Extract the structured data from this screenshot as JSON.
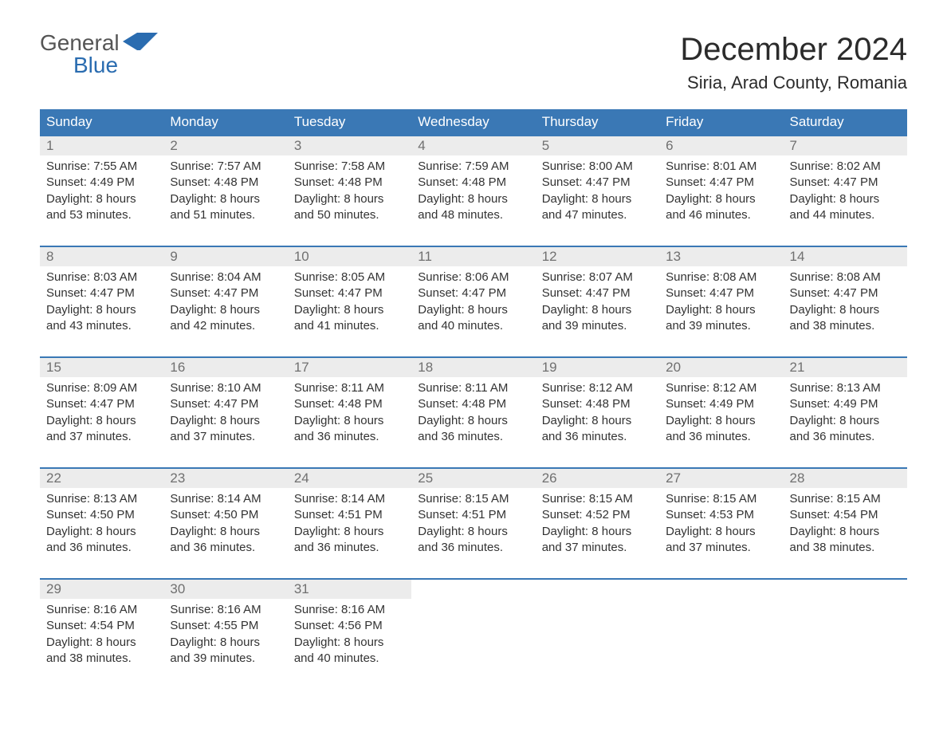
{
  "logo": {
    "word1": "General",
    "word2": "Blue"
  },
  "title": "December 2024",
  "location": "Siria, Arad County, Romania",
  "colors": {
    "header_bg": "#3a78b5",
    "header_fg": "#ffffff",
    "daynum_bg": "#ececec",
    "daynum_fg": "#707070",
    "text": "#333333",
    "rule": "#3a78b5",
    "logo_gray": "#555555",
    "logo_blue": "#2a6cb0",
    "page_bg": "#ffffff"
  },
  "typography": {
    "title_fontsize": 40,
    "location_fontsize": 22,
    "dow_fontsize": 17,
    "daynum_fontsize": 17,
    "body_fontsize": 15,
    "logo_fontsize": 28
  },
  "days_of_week": [
    "Sunday",
    "Monday",
    "Tuesday",
    "Wednesday",
    "Thursday",
    "Friday",
    "Saturday"
  ],
  "labels": {
    "sunrise": "Sunrise:",
    "sunset": "Sunset:",
    "daylight": "Daylight:"
  },
  "weeks": [
    [
      {
        "n": 1,
        "sunrise": "7:55 AM",
        "sunset": "4:49 PM",
        "daylight": "8 hours and 53 minutes."
      },
      {
        "n": 2,
        "sunrise": "7:57 AM",
        "sunset": "4:48 PM",
        "daylight": "8 hours and 51 minutes."
      },
      {
        "n": 3,
        "sunrise": "7:58 AM",
        "sunset": "4:48 PM",
        "daylight": "8 hours and 50 minutes."
      },
      {
        "n": 4,
        "sunrise": "7:59 AM",
        "sunset": "4:48 PM",
        "daylight": "8 hours and 48 minutes."
      },
      {
        "n": 5,
        "sunrise": "8:00 AM",
        "sunset": "4:47 PM",
        "daylight": "8 hours and 47 minutes."
      },
      {
        "n": 6,
        "sunrise": "8:01 AM",
        "sunset": "4:47 PM",
        "daylight": "8 hours and 46 minutes."
      },
      {
        "n": 7,
        "sunrise": "8:02 AM",
        "sunset": "4:47 PM",
        "daylight": "8 hours and 44 minutes."
      }
    ],
    [
      {
        "n": 8,
        "sunrise": "8:03 AM",
        "sunset": "4:47 PM",
        "daylight": "8 hours and 43 minutes."
      },
      {
        "n": 9,
        "sunrise": "8:04 AM",
        "sunset": "4:47 PM",
        "daylight": "8 hours and 42 minutes."
      },
      {
        "n": 10,
        "sunrise": "8:05 AM",
        "sunset": "4:47 PM",
        "daylight": "8 hours and 41 minutes."
      },
      {
        "n": 11,
        "sunrise": "8:06 AM",
        "sunset": "4:47 PM",
        "daylight": "8 hours and 40 minutes."
      },
      {
        "n": 12,
        "sunrise": "8:07 AM",
        "sunset": "4:47 PM",
        "daylight": "8 hours and 39 minutes."
      },
      {
        "n": 13,
        "sunrise": "8:08 AM",
        "sunset": "4:47 PM",
        "daylight": "8 hours and 39 minutes."
      },
      {
        "n": 14,
        "sunrise": "8:08 AM",
        "sunset": "4:47 PM",
        "daylight": "8 hours and 38 minutes."
      }
    ],
    [
      {
        "n": 15,
        "sunrise": "8:09 AM",
        "sunset": "4:47 PM",
        "daylight": "8 hours and 37 minutes."
      },
      {
        "n": 16,
        "sunrise": "8:10 AM",
        "sunset": "4:47 PM",
        "daylight": "8 hours and 37 minutes."
      },
      {
        "n": 17,
        "sunrise": "8:11 AM",
        "sunset": "4:48 PM",
        "daylight": "8 hours and 36 minutes."
      },
      {
        "n": 18,
        "sunrise": "8:11 AM",
        "sunset": "4:48 PM",
        "daylight": "8 hours and 36 minutes."
      },
      {
        "n": 19,
        "sunrise": "8:12 AM",
        "sunset": "4:48 PM",
        "daylight": "8 hours and 36 minutes."
      },
      {
        "n": 20,
        "sunrise": "8:12 AM",
        "sunset": "4:49 PM",
        "daylight": "8 hours and 36 minutes."
      },
      {
        "n": 21,
        "sunrise": "8:13 AM",
        "sunset": "4:49 PM",
        "daylight": "8 hours and 36 minutes."
      }
    ],
    [
      {
        "n": 22,
        "sunrise": "8:13 AM",
        "sunset": "4:50 PM",
        "daylight": "8 hours and 36 minutes."
      },
      {
        "n": 23,
        "sunrise": "8:14 AM",
        "sunset": "4:50 PM",
        "daylight": "8 hours and 36 minutes."
      },
      {
        "n": 24,
        "sunrise": "8:14 AM",
        "sunset": "4:51 PM",
        "daylight": "8 hours and 36 minutes."
      },
      {
        "n": 25,
        "sunrise": "8:15 AM",
        "sunset": "4:51 PM",
        "daylight": "8 hours and 36 minutes."
      },
      {
        "n": 26,
        "sunrise": "8:15 AM",
        "sunset": "4:52 PM",
        "daylight": "8 hours and 37 minutes."
      },
      {
        "n": 27,
        "sunrise": "8:15 AM",
        "sunset": "4:53 PM",
        "daylight": "8 hours and 37 minutes."
      },
      {
        "n": 28,
        "sunrise": "8:15 AM",
        "sunset": "4:54 PM",
        "daylight": "8 hours and 38 minutes."
      }
    ],
    [
      {
        "n": 29,
        "sunrise": "8:16 AM",
        "sunset": "4:54 PM",
        "daylight": "8 hours and 38 minutes."
      },
      {
        "n": 30,
        "sunrise": "8:16 AM",
        "sunset": "4:55 PM",
        "daylight": "8 hours and 39 minutes."
      },
      {
        "n": 31,
        "sunrise": "8:16 AM",
        "sunset": "4:56 PM",
        "daylight": "8 hours and 40 minutes."
      },
      null,
      null,
      null,
      null
    ]
  ]
}
